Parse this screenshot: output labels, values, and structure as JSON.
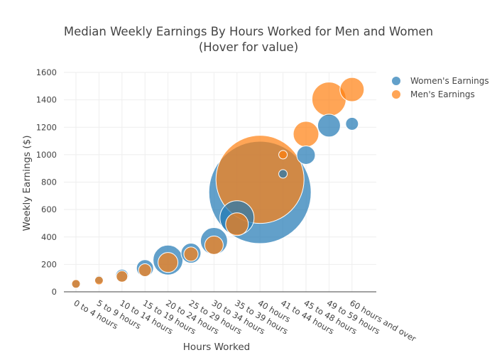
{
  "chart_data": {
    "type": "scatter",
    "title": "Median Weekly Earnings By Hours Worked for Men and Women",
    "subtitle": "(Hover for value)",
    "xlabel": "Hours Worked",
    "ylabel": "Weekly Earnings ($)",
    "categories": [
      "0 to 4 hours",
      "5 to 9 hours",
      "10 to 14 hours",
      "15 to 19 hours",
      "20 to 24 hours",
      "25 to 29 hours",
      "30 to 34 hours",
      "35 to 39 hours",
      "40 hours",
      "41 to 44 hours",
      "45 to 48 hours",
      "49 to 59 hours",
      "60 hours and over"
    ],
    "ylim": [
      0,
      1600
    ],
    "yticks": [
      0,
      200,
      400,
      600,
      800,
      1000,
      1200,
      1400,
      1600
    ],
    "grid": true,
    "legend_position": "top-right",
    "bubble_size_scale": "relative marker size",
    "series": [
      {
        "name": "Women's Earnings",
        "color": "#1f77b4",
        "values": [
          57,
          88,
          118,
          172,
          232,
          282,
          370,
          540,
          725,
          860,
          997,
          1212,
          1225
        ],
        "sizes": [
          6,
          6,
          9,
          12,
          21,
          14,
          19,
          24,
          72,
          6,
          13,
          16,
          9
        ]
      },
      {
        "name": "Men's Earnings",
        "color": "#ff7f0e",
        "values": [
          58,
          82,
          112,
          158,
          214,
          275,
          340,
          493,
          820,
          1000,
          1150,
          1405,
          1475
        ],
        "sizes": [
          6,
          6,
          8,
          9,
          14,
          10,
          13,
          16,
          62,
          6,
          18,
          24,
          17
        ]
      }
    ]
  }
}
